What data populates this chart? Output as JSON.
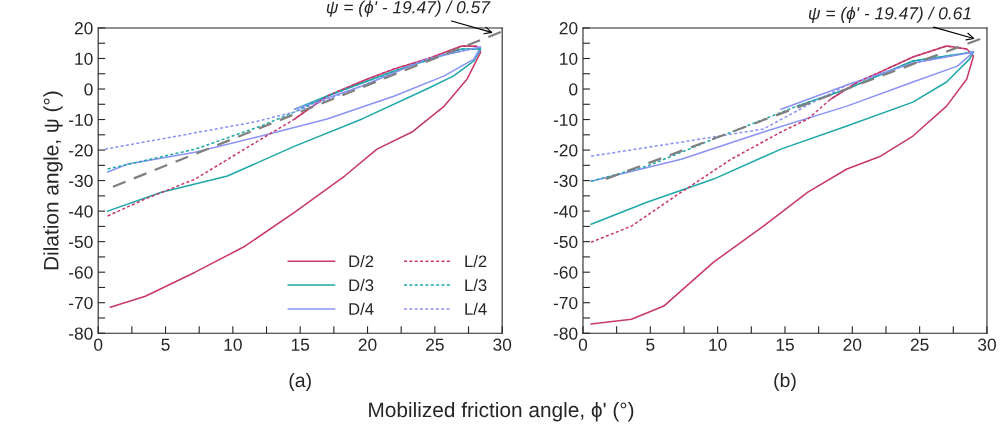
{
  "chart_data": [
    {
      "type": "line",
      "ylabel": "Dilation angle, ψ (°)",
      "xlabel": "Mobilized friction angle, ϕ' (°)",
      "xlim": [
        0,
        30
      ],
      "ylim": [
        -80,
        20
      ],
      "xticks": [
        0,
        {
          "value": 2.5,
          "label": null
        },
        5,
        {
          "value": 7.5,
          "label": null
        },
        10,
        {
          "value": 12.5,
          "label": null
        },
        15,
        {
          "value": 17.5,
          "label": null
        },
        20,
        {
          "value": 22.5,
          "label": null
        },
        25,
        {
          "value": 27.5,
          "label": null
        },
        30
      ],
      "yticks": [
        -80,
        {
          "value": -75,
          "label": null
        },
        -70,
        {
          "value": -65,
          "label": null
        },
        -60,
        {
          "value": -55,
          "label": null
        },
        -50,
        {
          "value": -45,
          "label": null
        },
        -40,
        {
          "value": -35,
          "label": null
        },
        -30,
        {
          "value": -25,
          "label": null
        },
        -20,
        {
          "value": -15,
          "label": null
        },
        -10,
        {
          "value": -5,
          "label": null
        },
        0,
        {
          "value": 5,
          "label": null
        },
        10,
        {
          "value": 15,
          "label": null
        },
        20
      ],
      "legend": "bottom right",
      "grid": false,
      "series": [
        {
          "name": "D/2",
          "color": "#c8386e",
          "line_style": "solid",
          "x": [
            0.9,
            3.5,
            7.2,
            10.9,
            14.6,
            18.3,
            20.7,
            23.3,
            25.7,
            27.4,
            28.4,
            28.1,
            27,
            24.4,
            22,
            20,
            17,
            14.6
          ],
          "values": [
            -71.5,
            -67.9,
            -60,
            -51.5,
            -40.3,
            -28.5,
            -19.7,
            -14.1,
            -5.6,
            3.3,
            12.1,
            14,
            14.1,
            9.8,
            6.6,
            3.3,
            -2.3,
            -9.8
          ]
        },
        {
          "name": "D/3",
          "color": "#1fa8a8",
          "line_style": "solid",
          "x": [
            0.7,
            4.7,
            9.6,
            14.6,
            19.6,
            24.4,
            26.4,
            27.9,
            28.4,
            27,
            22,
            17,
            14.6
          ],
          "values": [
            -40,
            -33.8,
            -28.5,
            -18.7,
            -9.8,
            0,
            4.3,
            9.2,
            13.1,
            13.1,
            5.9,
            -2.3,
            -6.6
          ]
        },
        {
          "name": "D/4",
          "color": "#8b93f5",
          "line_style": "solid",
          "x": [
            0.7,
            2.2,
            7.2,
            12.1,
            17,
            22,
            25.7,
            27.9,
            28.4,
            24.4,
            19.6,
            14.6
          ],
          "values": [
            -27.2,
            -24.6,
            -20.7,
            -15.4,
            -9.8,
            -2.3,
            4.3,
            9.8,
            13.8,
            9.8,
            1,
            -6.6
          ]
        },
        {
          "name": "L/2",
          "color": "#c8386e",
          "line_style": "dotted",
          "x": [
            0.7,
            3.5,
            7.2,
            12.1,
            14.6,
            17,
            20,
            22,
            24.4,
            27,
            28.1
          ],
          "values": [
            -41.6,
            -36,
            -29.5,
            -16.4,
            -9.8,
            -2.3,
            3.3,
            6.6,
            9.8,
            14.1,
            14
          ]
        },
        {
          "name": "L/3",
          "color": "#1fa8a8",
          "line_style": "dotted",
          "x": [
            0.7,
            7.2,
            12.1,
            14.6,
            17,
            22,
            27,
            28.4
          ],
          "values": [
            -26.2,
            -19.7,
            -12.1,
            -7.5,
            -2.3,
            5.9,
            13.1,
            13.1
          ]
        },
        {
          "name": "L/4",
          "color": "#8b93f5",
          "line_style": "dotted",
          "x": [
            0.5,
            5.9,
            11.6,
            14.6,
            19.6,
            24.4,
            28.4
          ],
          "values": [
            -19.7,
            -15.4,
            -10.8,
            -7.5,
            1,
            9.8,
            13.8
          ]
        },
        {
          "color": "#808080",
          "line_style": "dashed",
          "x": [
            1.1,
            29.9
          ],
          "values": [
            -32,
            18.7
          ]
        }
      ],
      "annotations": [
        {
          "text": "ψ = (ϕ' - 19.47) / 0.57",
          "x": 29.5,
          "y": 18.2
        },
        "(a)"
      ]
    },
    {
      "type": "line",
      "xlim": [
        0,
        30
      ],
      "ylim": [
        -80,
        20
      ],
      "xticks": [
        0,
        {
          "value": 2.5,
          "label": null
        },
        5,
        {
          "value": 7.5,
          "label": null
        },
        10,
        {
          "value": 12.5,
          "label": null
        },
        15,
        {
          "value": 17.5,
          "label": null
        },
        20,
        {
          "value": 22.5,
          "label": null
        },
        25,
        {
          "value": 27.5,
          "label": null
        },
        30
      ],
      "yticks": [
        -80,
        {
          "value": -75,
          "label": null
        },
        -70,
        {
          "value": -65,
          "label": null
        },
        -60,
        {
          "value": -55,
          "label": null
        },
        -50,
        {
          "value": -45,
          "label": null
        },
        -40,
        {
          "value": -35,
          "label": null
        },
        -30,
        {
          "value": -25,
          "label": null
        },
        -20,
        {
          "value": -15,
          "label": null
        },
        -10,
        {
          "value": -5,
          "label": null
        },
        0,
        {
          "value": 5,
          "label": null
        },
        10,
        {
          "value": 15,
          "label": null
        },
        20
      ],
      "grid": false,
      "series": [
        {
          "color": "#c8386e",
          "line_style": "solid",
          "x": [
            0.6,
            3.6,
            6,
            9.7,
            13.4,
            16.7,
            19.6,
            22.1,
            24.5,
            27,
            28.5,
            29,
            28.5,
            27,
            24.5,
            22.1,
            20.4,
            18.4
          ],
          "values": [
            -77,
            -75.4,
            -71.1,
            -56.7,
            -44.9,
            -33.8,
            -26.2,
            -22,
            -15.4,
            -5.6,
            3.3,
            10.8,
            13.1,
            14.1,
            10.5,
            5.6,
            2.3,
            -3.3
          ]
        },
        {
          "color": "#1fa8a8",
          "line_style": "solid",
          "x": [
            0.6,
            4.8,
            9.7,
            14.7,
            19.6,
            24.5,
            27,
            28.7,
            29,
            24.5,
            19.6,
            15.9
          ],
          "values": [
            -44.3,
            -37,
            -29.5,
            -19.7,
            -12.1,
            -4.3,
            2.3,
            9.8,
            12.1,
            9.2,
            0,
            -5.6
          ]
        },
        {
          "color": "#8b93f5",
          "line_style": "solid",
          "x": [
            0.6,
            7.3,
            13.4,
            19.6,
            24.5,
            27.8,
            29,
            24.5,
            19.6,
            14.7
          ],
          "values": [
            -30.2,
            -23,
            -14.1,
            -5.6,
            2.3,
            7.5,
            12.1,
            8.5,
            1.3,
            -6.6
          ]
        },
        {
          "color": "#c8386e",
          "line_style": "dotted",
          "x": [
            0.6,
            3.6,
            7.3,
            11,
            14.7,
            16.7,
            18.4,
            20.4,
            22.1,
            24.5,
            27,
            28.5
          ],
          "values": [
            -50.2,
            -44.9,
            -33.8,
            -23,
            -14.1,
            -9.8,
            -3.3,
            2.3,
            5.6,
            10.5,
            14.1,
            13.1
          ]
        },
        {
          "color": "#1fa8a8",
          "line_style": "dotted",
          "x": [
            0.6,
            4.8,
            9.7,
            15.9,
            19.6,
            24.5,
            29
          ],
          "values": [
            -30.2,
            -25.2,
            -16.4,
            -5.6,
            0,
            9.2,
            12.1
          ]
        },
        {
          "color": "#8b93f5",
          "line_style": "dotted",
          "x": [
            0.6,
            7.3,
            13.4,
            17.1,
            19.6,
            24.5,
            29
          ],
          "values": [
            -22,
            -17.4,
            -13.1,
            -4.3,
            1.3,
            8.5,
            12.1
          ]
        },
        {
          "color": "#808080",
          "line_style": "dashed",
          "x": [
            1.7,
            29.5
          ],
          "values": [
            -29.5,
            16.4
          ]
        }
      ],
      "annotations": [
        {
          "text": "ψ = (ϕ' - 19.47) / 0.61",
          "x": 29.3,
          "y": 16.2
        },
        "(b)"
      ]
    }
  ]
}
